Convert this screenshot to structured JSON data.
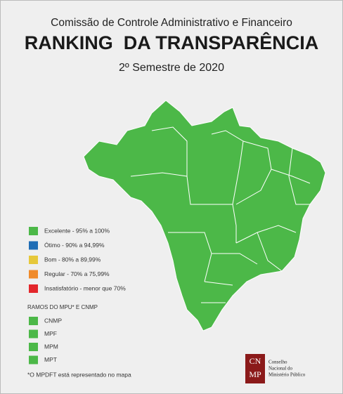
{
  "header": {
    "subtitle": "Comissão de Controle Administrativo e Financeiro",
    "title": "RANKING  DA TRANSPARÊNCIA",
    "period": "2º Semestre de 2020"
  },
  "legend": {
    "items": [
      {
        "label": "Excelente - 95% a 100%",
        "color": "#4cb848"
      },
      {
        "label": "Ótimo - 90% a 94,99%",
        "color": "#1f6db5"
      },
      {
        "label": "Bom - 80% a 89,99%",
        "color": "#e6c83a"
      },
      {
        "label": "Regular - 70% a 75,99%",
        "color": "#f08a2a"
      },
      {
        "label": "Insatisfatório - menor que 70%",
        "color": "#e3262b"
      }
    ]
  },
  "branches": {
    "title": "RAMOS DO MPU* E CNMP",
    "items": [
      {
        "label": "CNMP",
        "color": "#4cb848"
      },
      {
        "label": "MPF",
        "color": "#4cb848"
      },
      {
        "label": "MPM",
        "color": "#4cb848"
      },
      {
        "label": "MPT",
        "color": "#4cb848"
      }
    ]
  },
  "footnote": "*O MPDFT está representado no mapa",
  "map": {
    "color": "#4cb848"
  },
  "logo": {
    "mark_top": "CN",
    "mark_bottom": "MP",
    "lines": [
      "Conselho",
      "Nacional do",
      "Ministério Público"
    ]
  }
}
